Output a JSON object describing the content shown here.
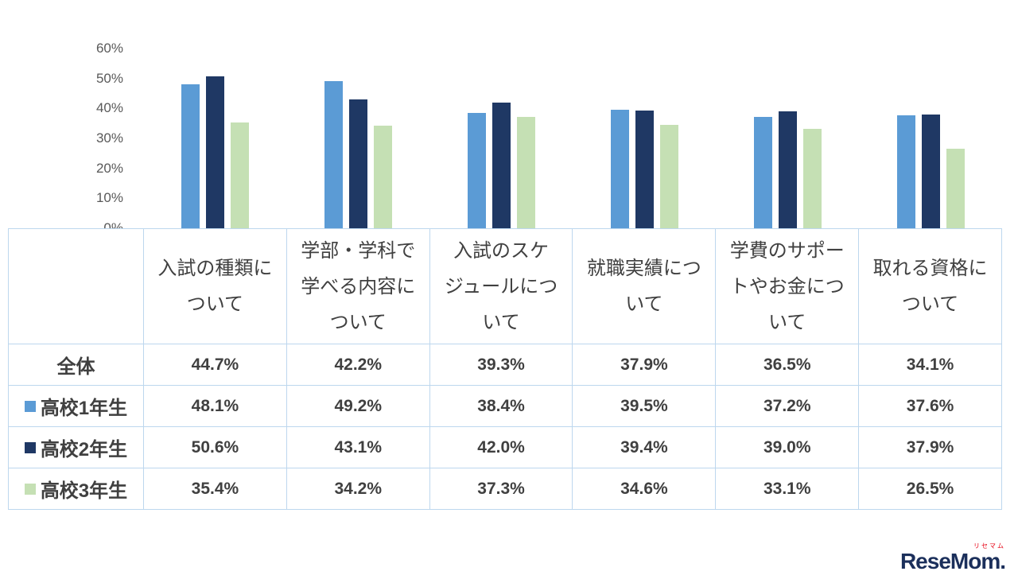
{
  "chart_data": {
    "type": "bar",
    "title": "",
    "xlabel": "",
    "ylabel": "",
    "ylim": [
      0,
      60
    ],
    "ytick_labels": [
      "60%",
      "50%",
      "40%",
      "30%",
      "20%",
      "10%",
      "0%"
    ],
    "grid": false,
    "legend_position": "table-row-labels",
    "categories": [
      "入試の種類に\nついて",
      "学部・学科で\n学べる内容に\nついて",
      "入試のスケ\nジュールにつ\nいて",
      "就職実績につ\nいて",
      "学費のサポー\nトやお金につ\nいて",
      "取れる資格に\nついて"
    ],
    "series": [
      {
        "name": "高校1年生",
        "color": "#5B9BD5",
        "values": [
          48.1,
          49.2,
          38.4,
          39.5,
          37.2,
          37.6
        ]
      },
      {
        "name": "高校2年生",
        "color": "#1F3864",
        "values": [
          50.6,
          43.1,
          42.0,
          39.4,
          39.0,
          37.9
        ]
      },
      {
        "name": "高校3年生",
        "color": "#C5E0B4",
        "values": [
          35.4,
          34.2,
          37.3,
          34.6,
          33.1,
          26.5
        ]
      }
    ],
    "table": {
      "rows": [
        {
          "label": "全体",
          "swatch": "",
          "values": [
            "44.7%",
            "42.2%",
            "39.3%",
            "37.9%",
            "36.5%",
            "34.1%"
          ]
        },
        {
          "label": "高校1年生",
          "swatch": "#5B9BD5",
          "values": [
            "48.1%",
            "49.2%",
            "38.4%",
            "39.5%",
            "37.2%",
            "37.6%"
          ]
        },
        {
          "label": "高校2年生",
          "swatch": "#1F3864",
          "values": [
            "50.6%",
            "43.1%",
            "42.0%",
            "39.4%",
            "39.0%",
            "37.9%"
          ]
        },
        {
          "label": "高校3年生",
          "swatch": "#C5E0B4",
          "values": [
            "35.4%",
            "34.2%",
            "37.3%",
            "34.6%",
            "33.1%",
            "26.5%"
          ]
        }
      ]
    }
  },
  "branding": {
    "logo_text": "ReseMom.",
    "logo_kana": "リセマム",
    "logo_color": "#1B2F5B",
    "logo_kana_color": "#E60012"
  }
}
